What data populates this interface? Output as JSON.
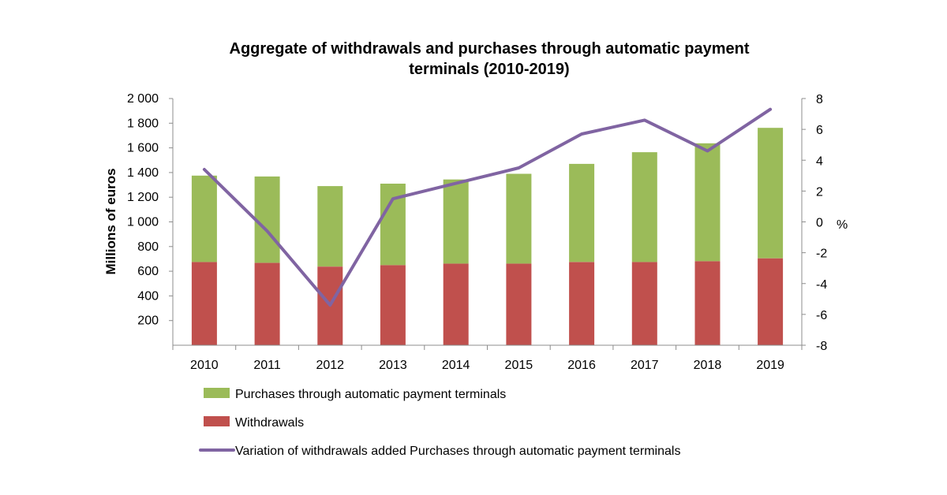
{
  "chart_data": {
    "type": "bar",
    "stacked": true,
    "title_line1": "Aggregate of withdrawals and purchases through automatic payment",
    "title_line2": "terminals (2010-2019)",
    "ylabel": "Millions of euros",
    "y2label": "%",
    "categories": [
      "2010",
      "2011",
      "2012",
      "2013",
      "2014",
      "2015",
      "2016",
      "2017",
      "2018",
      "2019"
    ],
    "ylim": [
      0,
      2000
    ],
    "y_ticks": [
      200,
      400,
      600,
      800,
      1000,
      1200,
      1400,
      1600,
      1800,
      2000
    ],
    "y_tick_labels": [
      "200",
      "400",
      "600",
      "800",
      "1 000",
      "1 200",
      "1 400",
      "1 600",
      "1 800",
      "2 000"
    ],
    "y2lim": [
      -8,
      8
    ],
    "y2_ticks": [
      -8,
      -6,
      -4,
      -2,
      0,
      2,
      4,
      6,
      8
    ],
    "y2_tick_labels": [
      "-8",
      "-6",
      "-4",
      "-2",
      "0",
      "2",
      "4",
      "6",
      "8"
    ],
    "series": [
      {
        "name": "Withdrawals",
        "type": "bar",
        "axis": "left",
        "color": "#c0504d",
        "values": [
          675,
          668,
          638,
          650,
          662,
          662,
          675,
          675,
          682,
          705
        ]
      },
      {
        "name": "Purchases through automatic payment terminals",
        "type": "bar",
        "axis": "left",
        "color": "#9bbb59",
        "values": [
          700,
          700,
          652,
          660,
          682,
          728,
          795,
          890,
          955,
          1057
        ]
      },
      {
        "name": "Variation of withdrawals added Purchases through automatic payment terminals",
        "type": "line",
        "axis": "right",
        "color": "#8064a2",
        "values": [
          3.4,
          -0.6,
          -5.4,
          1.5,
          2.5,
          3.5,
          5.7,
          6.6,
          4.6,
          7.3
        ]
      }
    ],
    "legend_order": [
      1,
      0,
      2
    ],
    "legend_position": "bottom"
  }
}
